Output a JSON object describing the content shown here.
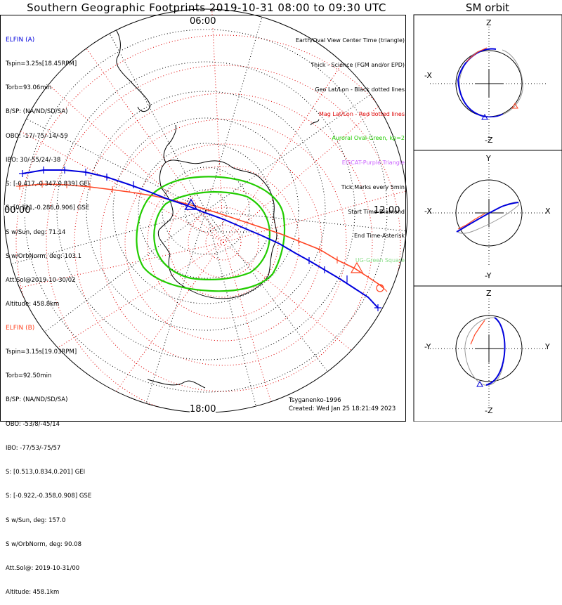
{
  "title": "Southern Geographic Footprints 2019-10-31 08:00 to 09:30 UTC",
  "orbit_panel_title": "SM orbit",
  "colors": {
    "elfin_a": "#0000dd",
    "elfin_b": "#ff4422",
    "aurora": "#22cc00",
    "mag_grid": "#dd0000",
    "geo_grid": "#000000",
    "eiscat": "#cc66ff",
    "ug": "#88dd88",
    "orbit_gray": "#999999"
  },
  "mlt_labels": {
    "top": "06:00",
    "left": "00:00",
    "right": "12:00",
    "bottom": "18:00"
  },
  "elfin_a": {
    "name": "ELFIN (A)",
    "lines": [
      "Tspin=3.25s[18.45RPM]",
      "Torb=93.06min",
      "B/SP: (NA/ND/SD/SA)",
      "OBO: -17/-75/-14/-59",
      "IBO: 30/-55/24/-38",
      "S: [-0.417,-0.347,0.839] GEI",
      "S: [0.321,-0.286,0.906] GSE",
      "S w/Sun, deg: 71.14",
      "S w/OrbNorm, deg: 103.1",
      "Att.Sol@2019-10-30/02",
      "Altitude: 458.8km"
    ]
  },
  "elfin_b": {
    "name": "ELFIN (B)",
    "lines": [
      "Tspin=3.15s[19.03RPM]",
      "Torb=92.50min",
      "B/SP: (NA/ND/SD/SA)",
      "OBO: -53/8/-45/14",
      "IBO: -77/53/-75/57",
      "S: [0.513,0.834,0.201] GEI",
      "S: [-0.922,-0.358,0.908] GSE",
      "S w/Sun, deg: 157.0",
      "S w/OrbNorm, deg: 90.08",
      "Att.Sol@: 2019-10-31/00",
      "Altitude: 458.1km"
    ]
  },
  "legend": {
    "view_center": "Earth/Oval View Center Time (triangle)",
    "thick": "Thick - Science (FGM and/or EPD)",
    "geo": "Geo Lat/Lon - Black dotted lines",
    "mag": "Mag Lat/Lon - Red dotted lines",
    "aurora": "Auroral Oval-Green, kp=2",
    "eiscat": "EISCAT-Purple Triangle",
    "ticks": "Tick Marks every 5min",
    "start": "Start Time-Diamond",
    "end": "End Time-Asterisk",
    "ug": "UG-Green Square"
  },
  "model": "Tsyganenko-1996",
  "created": "Created: Wed Jan 25 18:21:49 2023",
  "orbit_panels": [
    {
      "top": "Z",
      "bottom": "-Z",
      "left": "-X",
      "right": ""
    },
    {
      "top": "Y",
      "bottom": "-Y",
      "left": "-X",
      "right": "X"
    },
    {
      "top": "Z",
      "bottom": "-Z",
      "left": "-Y",
      "right": "Y"
    }
  ]
}
